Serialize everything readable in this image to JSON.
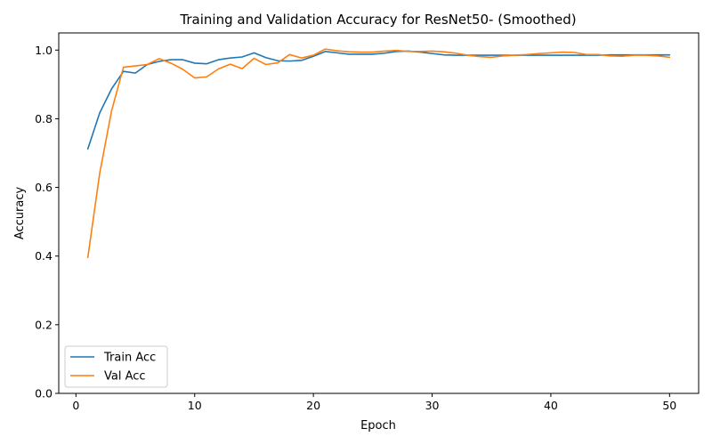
{
  "chart_data": {
    "type": "line",
    "title": "Training and Validation Accuracy for ResNet50- (Smoothed)",
    "xlabel": "Epoch",
    "ylabel": "Accuracy",
    "xlim": [
      -1.45,
      52.45
    ],
    "ylim": [
      0.0,
      1.05
    ],
    "x_ticks": [
      0,
      10,
      20,
      30,
      40,
      50
    ],
    "y_ticks": [
      0.0,
      0.2,
      0.4,
      0.6,
      0.8,
      1.0
    ],
    "grid": false,
    "legend": "lower-left",
    "x": [
      1,
      2,
      3,
      4,
      5,
      6,
      7,
      8,
      9,
      10,
      11,
      12,
      13,
      14,
      15,
      16,
      17,
      18,
      19,
      20,
      21,
      22,
      23,
      24,
      25,
      26,
      27,
      28,
      29,
      30,
      31,
      32,
      33,
      34,
      35,
      36,
      37,
      38,
      39,
      40,
      41,
      42,
      43,
      44,
      45,
      46,
      47,
      48,
      49,
      50
    ],
    "series": [
      {
        "name": "Train Acc",
        "color": "#1f77b4",
        "values": [
          0.712,
          0.817,
          0.887,
          0.938,
          0.933,
          0.958,
          0.967,
          0.972,
          0.972,
          0.962,
          0.96,
          0.972,
          0.977,
          0.98,
          0.992,
          0.978,
          0.969,
          0.968,
          0.97,
          0.982,
          0.996,
          0.992,
          0.988,
          0.988,
          0.988,
          0.991,
          0.996,
          0.997,
          0.994,
          0.99,
          0.986,
          0.985,
          0.985,
          0.985,
          0.985,
          0.985,
          0.985,
          0.985,
          0.985,
          0.985,
          0.985,
          0.985,
          0.985,
          0.985,
          0.986,
          0.986,
          0.986,
          0.986,
          0.986,
          0.986
        ]
      },
      {
        "name": "Val Acc",
        "color": "#ff7f0e",
        "values": [
          0.396,
          0.641,
          0.823,
          0.95,
          0.954,
          0.958,
          0.975,
          0.962,
          0.944,
          0.919,
          0.922,
          0.945,
          0.959,
          0.946,
          0.976,
          0.958,
          0.963,
          0.987,
          0.977,
          0.985,
          1.003,
          0.998,
          0.995,
          0.994,
          0.994,
          0.997,
          0.999,
          0.996,
          0.996,
          0.997,
          0.995,
          0.991,
          0.985,
          0.981,
          0.979,
          0.983,
          0.985,
          0.987,
          0.99,
          0.992,
          0.994,
          0.993,
          0.987,
          0.987,
          0.983,
          0.982,
          0.985,
          0.985,
          0.983,
          0.979
        ]
      }
    ]
  }
}
